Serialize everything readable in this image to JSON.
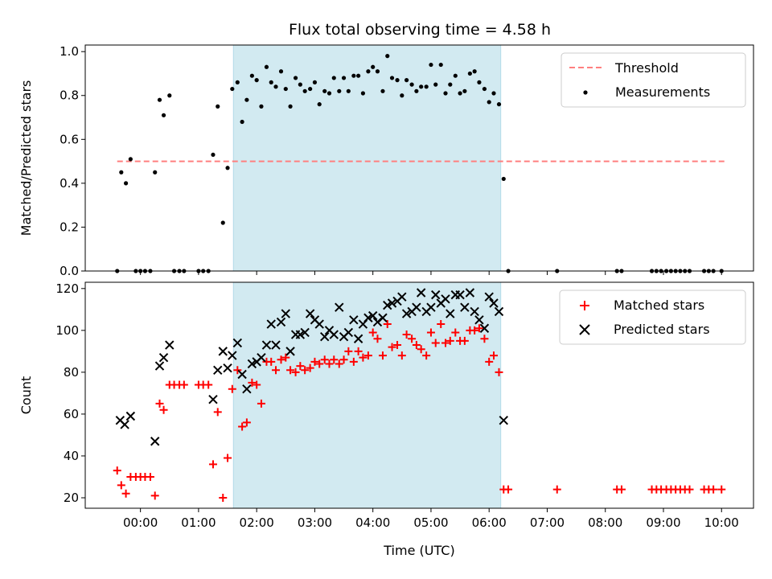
{
  "title": "Flux total observing time = 4.58 h",
  "colors": {
    "shade": "#add8e6",
    "threshold": "#ff7f7f",
    "measurements": "#000000",
    "matched": "#ff0000",
    "predicted": "#000000"
  },
  "chart_data": [
    {
      "type": "scatter",
      "ylabel": "Matched/Predicted stars",
      "xlim": [
        -0.95,
        10.55
      ],
      "ylim": [
        0,
        1.03
      ],
      "yticks": [
        0.0,
        0.2,
        0.4,
        0.6,
        0.8,
        1.0
      ],
      "ytick_labels": [
        "0.0",
        "0.2",
        "0.4",
        "0.6",
        "0.8",
        "1.0"
      ],
      "shaded_x": [
        1.6,
        6.2
      ],
      "threshold": {
        "name": "Threshold",
        "y": 0.5,
        "x": [
          -0.4,
          10.05
        ]
      },
      "legend": [
        "Threshold",
        "Measurements"
      ],
      "legend_position": "top-right",
      "series": [
        {
          "name": "Measurements",
          "marker": "dot",
          "x": [
            -0.4,
            -0.33,
            -0.25,
            -0.17,
            -0.08,
            0.0,
            0.08,
            0.17,
            0.25,
            0.33,
            0.4,
            0.5,
            0.58,
            0.67,
            0.75,
            1.0,
            1.08,
            1.17,
            1.25,
            1.33,
            1.42,
            1.5,
            1.58,
            1.67,
            1.75,
            1.83,
            1.92,
            2.0,
            2.08,
            2.17,
            2.25,
            2.33,
            2.42,
            2.5,
            2.58,
            2.67,
            2.75,
            2.83,
            2.92,
            3.0,
            3.08,
            3.17,
            3.25,
            3.33,
            3.42,
            3.5,
            3.58,
            3.67,
            3.75,
            3.83,
            3.92,
            4.0,
            4.08,
            4.17,
            4.25,
            4.33,
            4.42,
            4.5,
            4.58,
            4.67,
            4.75,
            4.83,
            4.92,
            5.0,
            5.08,
            5.17,
            5.25,
            5.33,
            5.42,
            5.5,
            5.58,
            5.67,
            5.75,
            5.83,
            5.92,
            6.0,
            6.08,
            6.17,
            6.25,
            6.33,
            7.17,
            8.2,
            8.28,
            8.8,
            8.88,
            8.96,
            9.05,
            9.13,
            9.21,
            9.29,
            9.37,
            9.45,
            9.7,
            9.78,
            9.86,
            10.0
          ],
          "y": [
            0.0,
            0.45,
            0.4,
            0.51,
            0.0,
            0.0,
            0.0,
            0.0,
            0.45,
            0.78,
            0.71,
            0.8,
            0.0,
            0.0,
            0.0,
            0.0,
            0.0,
            0.0,
            0.53,
            0.75,
            0.22,
            0.47,
            0.83,
            0.86,
            0.68,
            0.78,
            0.89,
            0.87,
            0.75,
            0.93,
            0.86,
            0.84,
            0.91,
            0.83,
            0.75,
            0.88,
            0.85,
            0.82,
            0.83,
            0.86,
            0.76,
            0.82,
            0.81,
            0.88,
            0.82,
            0.88,
            0.82,
            0.89,
            0.89,
            0.81,
            0.91,
            0.93,
            0.91,
            0.82,
            0.98,
            0.88,
            0.87,
            0.8,
            0.87,
            0.85,
            0.82,
            0.84,
            0.84,
            0.94,
            0.85,
            0.94,
            0.81,
            0.85,
            0.89,
            0.81,
            0.82,
            0.9,
            0.91,
            0.86,
            0.83,
            0.77,
            0.81,
            0.76,
            0.42,
            0.0,
            0.0,
            0.0,
            0.0,
            0.0,
            0.0,
            0.0,
            0.0,
            0.0,
            0.0,
            0.0,
            0.0,
            0.0,
            0.0,
            0.0,
            0.0,
            0.0
          ]
        }
      ]
    },
    {
      "type": "scatter",
      "xlabel": "Time (UTC)",
      "ylabel": "Count",
      "xlim": [
        -0.95,
        10.55
      ],
      "ylim": [
        15,
        123
      ],
      "yticks": [
        20,
        40,
        60,
        80,
        100,
        120
      ],
      "ytick_labels": [
        "20",
        "40",
        "60",
        "80",
        "100",
        "120"
      ],
      "xticks": [
        0,
        1,
        2,
        3,
        4,
        5,
        6,
        7,
        8,
        9,
        10
      ],
      "xtick_labels": [
        "00:00",
        "01:00",
        "02:00",
        "03:00",
        "04:00",
        "05:00",
        "06:00",
        "07:00",
        "08:00",
        "09:00",
        "10:00"
      ],
      "shaded_x": [
        1.6,
        6.2
      ],
      "legend": [
        "Matched stars",
        "Predicted stars"
      ],
      "legend_position": "top-right",
      "series": [
        {
          "name": "Matched stars",
          "marker": "plus",
          "x": [
            -0.4,
            -0.33,
            -0.25,
            -0.17,
            -0.08,
            0.0,
            0.08,
            0.17,
            0.25,
            0.33,
            0.4,
            0.5,
            0.58,
            0.67,
            0.75,
            1.0,
            1.08,
            1.17,
            1.25,
            1.33,
            1.42,
            1.5,
            1.58,
            1.67,
            1.75,
            1.83,
            1.92,
            2.0,
            2.08,
            2.17,
            2.25,
            2.33,
            2.42,
            2.5,
            2.58,
            2.67,
            2.75,
            2.83,
            2.92,
            3.0,
            3.08,
            3.17,
            3.25,
            3.33,
            3.42,
            3.5,
            3.58,
            3.67,
            3.75,
            3.83,
            3.92,
            4.0,
            4.08,
            4.17,
            4.25,
            4.33,
            4.42,
            4.5,
            4.58,
            4.67,
            4.75,
            4.83,
            4.92,
            5.0,
            5.08,
            5.17,
            5.25,
            5.33,
            5.42,
            5.5,
            5.58,
            5.67,
            5.75,
            5.83,
            5.92,
            6.0,
            6.08,
            6.17,
            6.25,
            6.33,
            7.17,
            8.2,
            8.28,
            8.8,
            8.88,
            8.96,
            9.05,
            9.13,
            9.21,
            9.29,
            9.37,
            9.45,
            9.7,
            9.78,
            9.86,
            10.0
          ],
          "y": [
            33,
            26,
            22,
            30,
            30,
            30,
            30,
            30,
            21,
            65,
            62,
            74,
            74,
            74,
            74,
            74,
            74,
            74,
            36,
            61,
            20,
            39,
            72,
            81,
            54,
            56,
            75,
            74,
            65,
            85,
            85,
            81,
            86,
            87,
            81,
            80,
            83,
            81,
            82,
            85,
            84,
            86,
            84,
            86,
            84,
            86,
            90,
            85,
            90,
            87,
            88,
            99,
            96,
            88,
            103,
            92,
            93,
            88,
            98,
            96,
            93,
            91,
            88,
            99,
            94,
            103,
            94,
            95,
            99,
            95,
            95,
            100,
            100,
            101,
            96,
            85,
            88,
            80,
            24,
            24,
            24,
            24,
            24,
            24,
            24,
            24,
            24,
            24,
            24,
            24,
            24,
            24,
            24,
            24,
            24,
            24
          ]
        },
        {
          "name": "Predicted stars",
          "marker": "x",
          "x": [
            -0.35,
            -0.27,
            -0.17,
            0.25,
            0.33,
            0.4,
            0.5,
            1.25,
            1.33,
            1.42,
            1.5,
            1.58,
            1.67,
            1.75,
            1.83,
            1.92,
            2.0,
            2.08,
            2.17,
            2.25,
            2.33,
            2.42,
            2.5,
            2.58,
            2.67,
            2.75,
            2.83,
            2.92,
            3.0,
            3.08,
            3.17,
            3.25,
            3.33,
            3.42,
            3.5,
            3.58,
            3.67,
            3.75,
            3.83,
            3.92,
            4.0,
            4.08,
            4.17,
            4.25,
            4.33,
            4.42,
            4.5,
            4.58,
            4.67,
            4.75,
            4.83,
            4.92,
            5.0,
            5.08,
            5.17,
            5.25,
            5.33,
            5.42,
            5.5,
            5.58,
            5.67,
            5.75,
            5.83,
            5.92,
            6.0,
            6.08,
            6.17,
            6.25
          ],
          "y": [
            57,
            55,
            59,
            47,
            83,
            87,
            93,
            67,
            81,
            90,
            82,
            88,
            94,
            79,
            72,
            84,
            85,
            87,
            93,
            103,
            93,
            104,
            108,
            90,
            98,
            98,
            99,
            108,
            105,
            103,
            97,
            100,
            98,
            111,
            97,
            99,
            105,
            96,
            103,
            106,
            107,
            104,
            106,
            112,
            113,
            114,
            116,
            108,
            109,
            111,
            118,
            109,
            111,
            117,
            113,
            115,
            108,
            117,
            117,
            111,
            118,
            109,
            105,
            101,
            116,
            113,
            109,
            57
          ]
        }
      ]
    }
  ]
}
